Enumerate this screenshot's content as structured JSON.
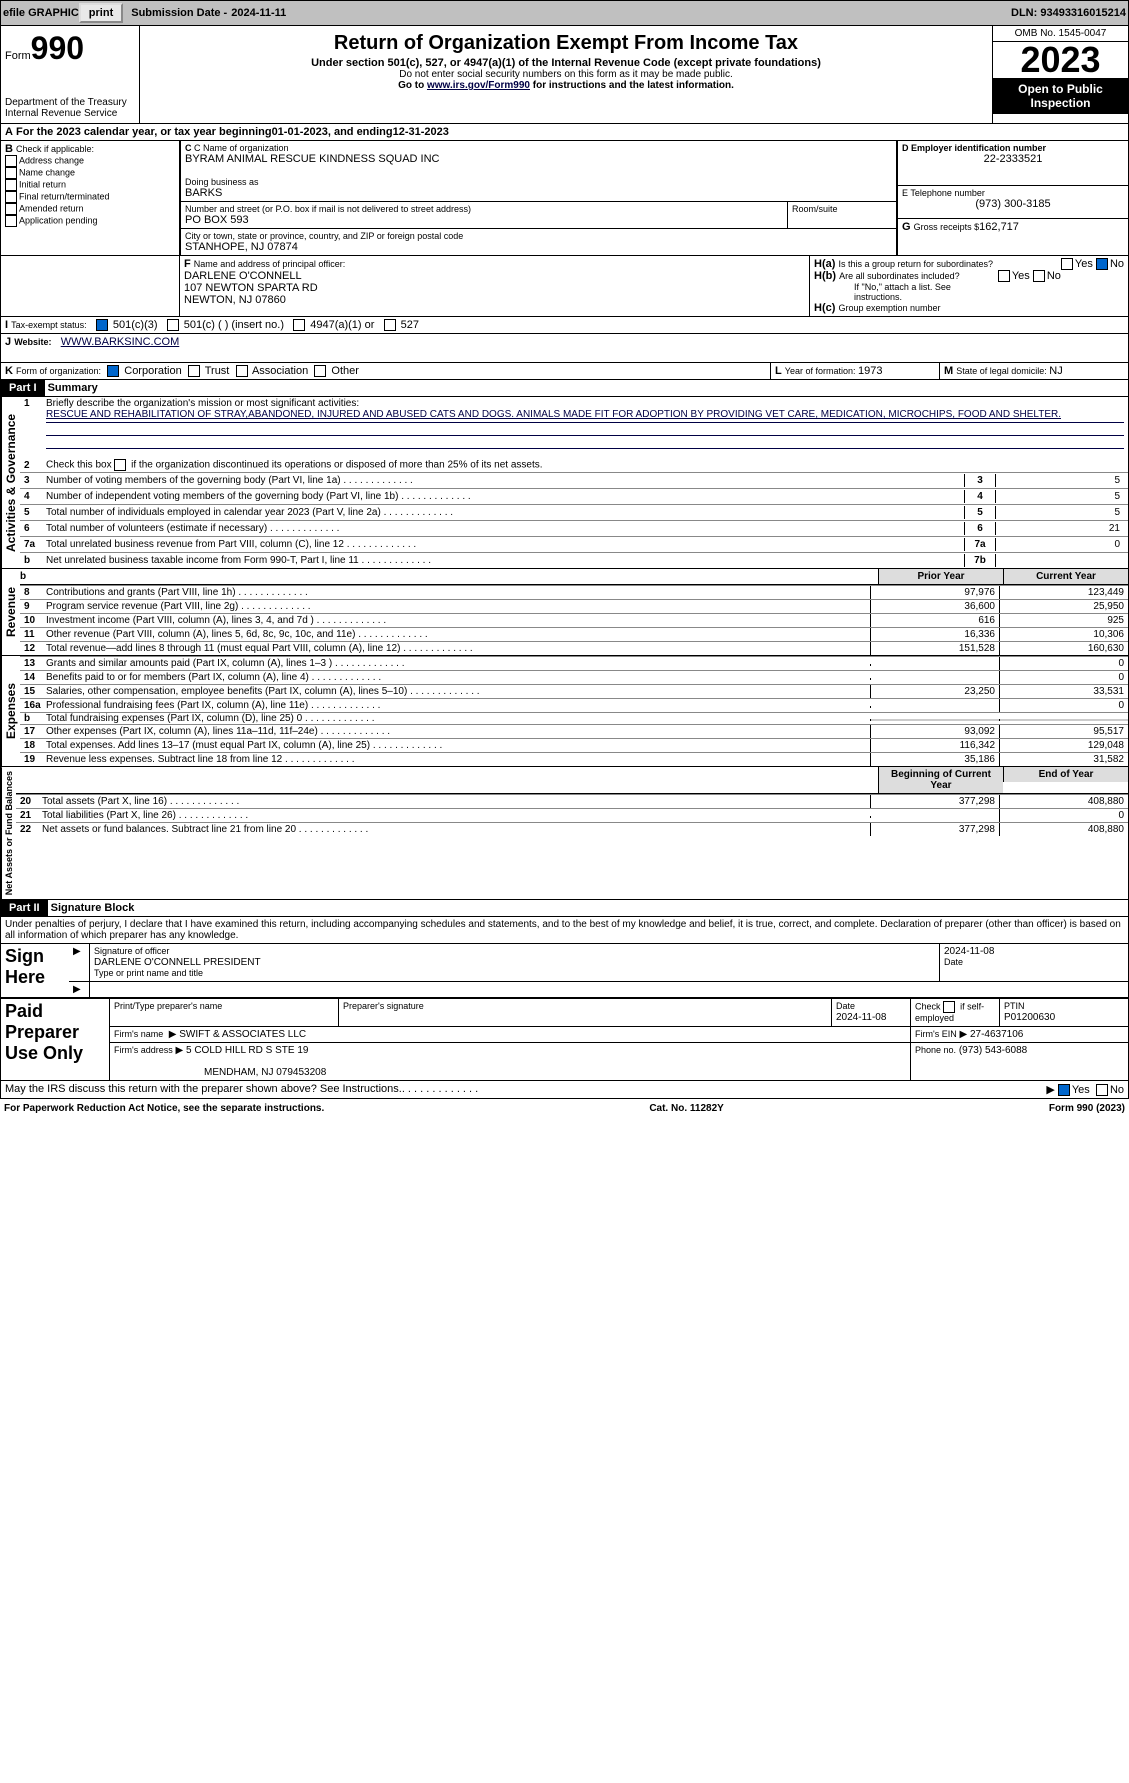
{
  "bar": {
    "efile": "efile GRAPHIC",
    "print": "print",
    "sub_label": "Submission Date - ",
    "sub_date": "2024-11-11",
    "dln_label": "DLN: ",
    "dln": "93493316015214"
  },
  "header": {
    "form": "Form",
    "num": "990",
    "dept": "Department of the Treasury\nInternal Revenue Service",
    "title": "Return of Organization Exempt From Income Tax",
    "sub": "Under section 501(c), 527, or 4947(a)(1) of the Internal Revenue Code (except private foundations)",
    "note1": "Do not enter social security numbers on this form as it may be made public.",
    "note2_pre": "Go to ",
    "note2_link": "www.irs.gov/Form990",
    "note2_post": " for instructions and the latest information.",
    "omb": "OMB No. 1545-0047",
    "year": "2023",
    "inspect": "Open to Public Inspection"
  },
  "period": {
    "a": "A",
    "text": "For the 2023 calendar year, or tax year beginning ",
    "begin": "01-01-2023",
    "mid": " , and ending ",
    "end": "12-31-2023"
  },
  "B": {
    "label": "B",
    "check": "Check if applicable:",
    "items": [
      "Address change",
      "Name change",
      "Initial return",
      "Final return/terminated",
      "Amended return",
      "Application pending"
    ]
  },
  "C": {
    "name_label": "C Name of organization",
    "name": "BYRAM ANIMAL RESCUE KINDNESS SQUAD INC",
    "dba_label": "Doing business as",
    "dba": "BARKS",
    "street_label": "Number and street (or P.O. box if mail is not delivered to street address)",
    "street": "PO BOX 593",
    "room": "Room/suite",
    "city_label": "City or town, state or province, country, and ZIP or foreign postal code",
    "city": "STANHOPE, NJ  07874"
  },
  "D": {
    "label": "D Employer identification number",
    "val": "22-2333521"
  },
  "E": {
    "label": "E Telephone number",
    "val": "(973) 300-3185"
  },
  "G": {
    "label": "G",
    "text": "Gross receipts $",
    "val": "162,717"
  },
  "F": {
    "label": "F",
    "text": "Name and address of principal officer:",
    "name": "DARLENE O'CONNELL",
    "addr1": "107 NEWTON SPARTA RD",
    "addr2": "NEWTON, NJ  07860"
  },
  "H": {
    "a": "H(a)",
    "a_text": "Is this a group return for subordinates?",
    "b": "H(b)",
    "b_text": "Are all subordinates included?",
    "b_note": "If \"No,\" attach a list. See instructions.",
    "c": "H(c)",
    "c_text": "Group exemption number",
    "yes": "Yes",
    "no": "No"
  },
  "I": {
    "label": "I",
    "text": "Tax-exempt status:",
    "c3": "501(c)(3)",
    "c": "501(c) (   ) (insert no.)",
    "a1": "4947(a)(1) or",
    "s527": "527"
  },
  "J": {
    "label": "J",
    "text": "Website:",
    "val": "WWW.BARKSINC.COM"
  },
  "K": {
    "label": "K",
    "text": "Form of organization:",
    "corp": "Corporation",
    "trust": "Trust",
    "assoc": "Association",
    "other": "Other"
  },
  "L": {
    "label": "L",
    "text": "Year of formation: ",
    "val": "1973"
  },
  "M": {
    "label": "M",
    "text": "State of legal domicile: ",
    "val": "NJ"
  },
  "part1": {
    "label": "Part I",
    "title": "Summary"
  },
  "sections": {
    "ag": "Activities & Governance",
    "rev": "Revenue",
    "exp": "Expenses",
    "na": "Net Assets or Fund Balances"
  },
  "s1": {
    "n": "1",
    "t": "Briefly describe the organization's mission or most significant activities:",
    "mission": "RESCUE AND REHABILITATION OF STRAY,ABANDONED, INJURED AND ABUSED CATS AND DOGS. ANIMALS MADE FIT FOR ADOPTION BY PROVIDING VET CARE, MEDICATION, MICROCHIPS, FOOD AND SHELTER."
  },
  "s2": {
    "n": "2",
    "t": "Check this box",
    "t2": "if the organization discontinued its operations or disposed of more than 25% of its net assets."
  },
  "lines_ag": [
    {
      "n": "3",
      "t": "Number of voting members of the governing body (Part VI, line 1a)",
      "box": "3",
      "v": "5"
    },
    {
      "n": "4",
      "t": "Number of independent voting members of the governing body (Part VI, line 1b)",
      "box": "4",
      "v": "5"
    },
    {
      "n": "5",
      "t": "Total number of individuals employed in calendar year 2023 (Part V, line 2a)",
      "box": "5",
      "v": "5"
    },
    {
      "n": "6",
      "t": "Total number of volunteers (estimate if necessary)",
      "box": "6",
      "v": "21"
    },
    {
      "n": "7a",
      "t": "Total unrelated business revenue from Part VIII, column (C), line 12",
      "box": "7a",
      "v": "0"
    },
    {
      "n": "b",
      "t": "Net unrelated business taxable income from Form 990-T, Part I, line 11",
      "box": "7b",
      "v": ""
    }
  ],
  "col_hdr": {
    "prior": "Prior Year",
    "current": "Current Year"
  },
  "lines_rev": [
    {
      "n": "8",
      "t": "Contributions and grants (Part VIII, line 1h)",
      "p": "97,976",
      "c": "123,449"
    },
    {
      "n": "9",
      "t": "Program service revenue (Part VIII, line 2g)",
      "p": "36,600",
      "c": "25,950"
    },
    {
      "n": "10",
      "t": "Investment income (Part VIII, column (A), lines 3, 4, and 7d )",
      "p": "616",
      "c": "925"
    },
    {
      "n": "11",
      "t": "Other revenue (Part VIII, column (A), lines 5, 6d, 8c, 9c, 10c, and 11e)",
      "p": "16,336",
      "c": "10,306"
    },
    {
      "n": "12",
      "t": "Total revenue—add lines 8 through 11 (must equal Part VIII, column (A), line 12)",
      "p": "151,528",
      "c": "160,630"
    }
  ],
  "lines_exp": [
    {
      "n": "13",
      "t": "Grants and similar amounts paid (Part IX, column (A), lines 1–3 )",
      "p": "",
      "c": "0"
    },
    {
      "n": "14",
      "t": "Benefits paid to or for members (Part IX, column (A), line 4)",
      "p": "",
      "c": "0"
    },
    {
      "n": "15",
      "t": "Salaries, other compensation, employee benefits (Part IX, column (A), lines 5–10)",
      "p": "23,250",
      "c": "33,531"
    },
    {
      "n": "16a",
      "t": "Professional fundraising fees (Part IX, column (A), line 11e)",
      "p": "",
      "c": "0"
    },
    {
      "n": "b",
      "t": "Total fundraising expenses (Part IX, column (D), line 25) 0",
      "p": "shade",
      "c": "shade"
    },
    {
      "n": "17",
      "t": "Other expenses (Part IX, column (A), lines 11a–11d, 11f–24e)",
      "p": "93,092",
      "c": "95,517"
    },
    {
      "n": "18",
      "t": "Total expenses. Add lines 13–17 (must equal Part IX, column (A), line 25)",
      "p": "116,342",
      "c": "129,048"
    },
    {
      "n": "19",
      "t": "Revenue less expenses. Subtract line 18 from line 12",
      "p": "35,186",
      "c": "31,582"
    }
  ],
  "col_hdr2": {
    "prior": "Beginning of Current Year",
    "current": "End of Year"
  },
  "lines_na": [
    {
      "n": "20",
      "t": "Total assets (Part X, line 16)",
      "p": "377,298",
      "c": "408,880"
    },
    {
      "n": "21",
      "t": "Total liabilities (Part X, line 26)",
      "p": "",
      "c": "0"
    },
    {
      "n": "22",
      "t": "Net assets or fund balances. Subtract line 21 from line 20",
      "p": "377,298",
      "c": "408,880"
    }
  ],
  "part2": {
    "label": "Part II",
    "title": "Signature Block"
  },
  "perjury": "Under penalties of perjury, I declare that I have examined this return, including accompanying schedules and statements, and to the best of my knowledge and belief, it is true, correct, and complete. Declaration of preparer (other than officer) is based on all information of which preparer has any knowledge.",
  "sign": {
    "here": "Sign Here",
    "sig_label": "Signature of officer",
    "date_label": "Date",
    "date": "2024-11-08",
    "name": "DARLENE O'CONNELL  PRESIDENT",
    "name_label": "Type or print name and title"
  },
  "paid": {
    "title": "Paid Preparer Use Only",
    "h1": "Print/Type preparer's name",
    "h2": "Preparer's signature",
    "h3": "Date",
    "h3v": "2024-11-08",
    "h4": "Check",
    "h4b": "if self-employed",
    "h5": "PTIN",
    "h5v": "P01200630",
    "firm_name_l": "Firm's name",
    "firm_name": "SWIFT & ASSOCIATES LLC",
    "firm_ein_l": "Firm's EIN",
    "firm_ein": "27-4637106",
    "firm_addr_l": "Firm's address",
    "firm_addr": "5 COLD HILL RD S STE 19",
    "firm_addr2": "MENDHAM, NJ  079453208",
    "phone_l": "Phone no.",
    "phone": "(973) 543-6088"
  },
  "discuss": "May the IRS discuss this return with the preparer shown above? See Instructions.",
  "footer": {
    "pra": "For Paperwork Reduction Act Notice, see the separate instructions.",
    "cat": "Cat. No. 11282Y",
    "form": "Form",
    "num": "990",
    "yr": "(2023)"
  }
}
